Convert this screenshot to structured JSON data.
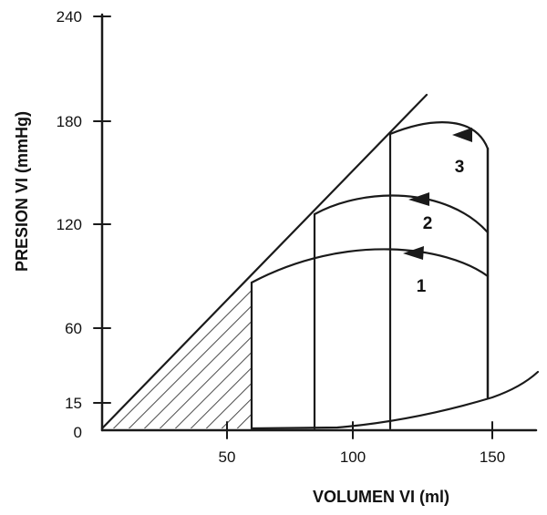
{
  "axes": {
    "x_title": "VOLUMEN VI (ml)",
    "y_title": "PRESION VI (mmHg)",
    "y_ticks": [
      "240",
      "180",
      "120",
      "60",
      "15",
      "0"
    ],
    "x_ticks": [
      "50",
      "100",
      "150"
    ]
  },
  "loops": [
    {
      "label": "1",
      "ejection_start_volume": 150,
      "end_systolic_volume": 60
    },
    {
      "label": "2",
      "ejection_start_volume": 150,
      "end_systolic_volume": 83
    },
    {
      "label": "3",
      "ejection_start_volume": 150,
      "end_systolic_volume": 113
    }
  ],
  "colors": {
    "ink": "#1a1a1a",
    "background": "#ffffff"
  }
}
